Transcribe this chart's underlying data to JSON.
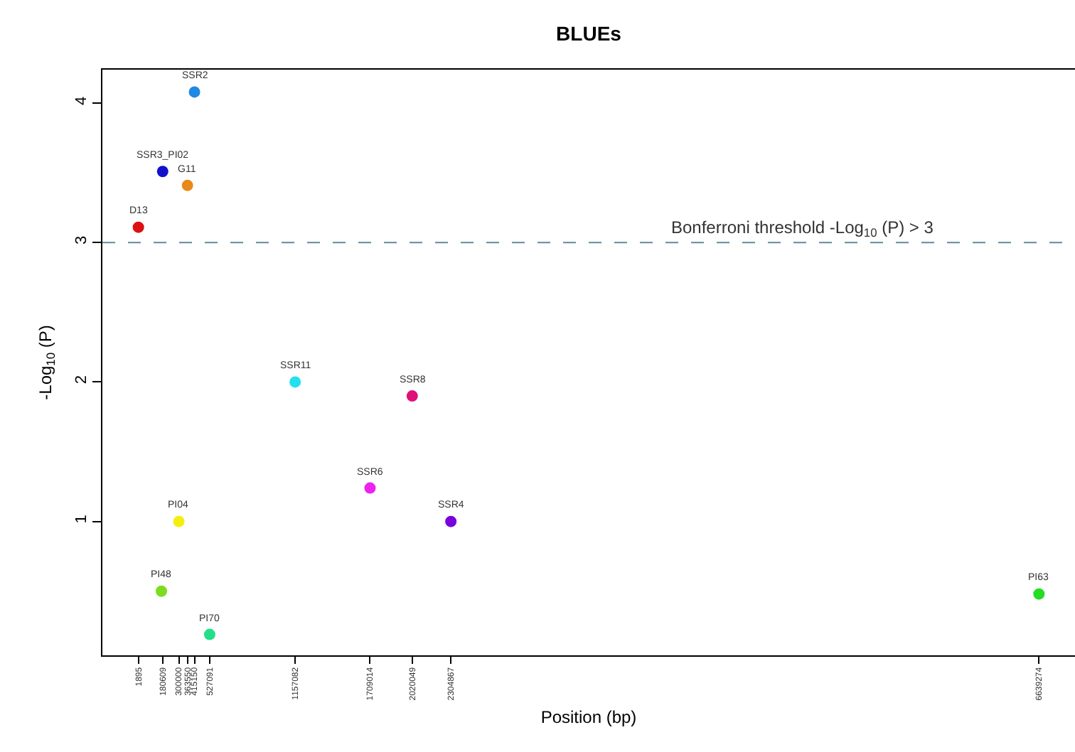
{
  "chart_data": {
    "type": "scatter",
    "title": "BLUEs",
    "xlabel": "Position (bp)",
    "ylabel": "-Log$_{10}$ (P)",
    "xlim": [
      -263600,
      6904769
    ],
    "ylim": [
      0.04,
      4.24
    ],
    "xticks": [
      1895,
      180609,
      300000,
      363550,
      415150,
      527091,
      1157082,
      1709014,
      2020049,
      2304867,
      6639274
    ],
    "yticks": [
      1,
      2,
      3,
      4
    ],
    "grid": false,
    "legend": false,
    "marker": "circle",
    "ref_lines": [
      {
        "axis": "y",
        "value": 3,
        "label": "Bonferroni threshold -Log$_{10}$ (P) > 3",
        "color": "#5f8a9a",
        "line_style": "dashed"
      }
    ],
    "series": [
      {
        "name": "D13",
        "color": "#dd1111",
        "x": [
          1895
        ],
        "values": [
          3.11
        ]
      },
      {
        "name": "SSR3_PI02",
        "color": "#1111cc",
        "x": [
          180609
        ],
        "values": [
          3.51
        ]
      },
      {
        "name": "G11",
        "color": "#e88a1a",
        "x": [
          363550
        ],
        "values": [
          3.41
        ]
      },
      {
        "name": "SSR2",
        "color": "#1e88e5",
        "x": [
          415150
        ],
        "values": [
          4.08
        ]
      },
      {
        "name": "PI04",
        "color": "#f5ee11",
        "x": [
          300000
        ],
        "values": [
          1.0
        ]
      },
      {
        "name": "PI48",
        "color": "#7ddc1f",
        "x": [
          171530
        ],
        "values": [
          0.5
        ]
      },
      {
        "name": "PI70",
        "color": "#22e08a",
        "x": [
          527091
        ],
        "values": [
          0.19
        ]
      },
      {
        "name": "SSR11",
        "color": "#22e0f0",
        "x": [
          1157082
        ],
        "values": [
          2.0
        ]
      },
      {
        "name": "SSR6",
        "color": "#ee22ee",
        "x": [
          1709014
        ],
        "values": [
          1.24
        ]
      },
      {
        "name": "SSR8",
        "color": "#dd1177",
        "x": [
          2020049
        ],
        "values": [
          1.9
        ]
      },
      {
        "name": "SSR4",
        "color": "#7a00dd",
        "x": [
          2304867
        ],
        "values": [
          1.0
        ]
      },
      {
        "name": "PI63",
        "color": "#22dd22",
        "x": [
          6639274
        ],
        "values": [
          0.48
        ]
      }
    ]
  }
}
